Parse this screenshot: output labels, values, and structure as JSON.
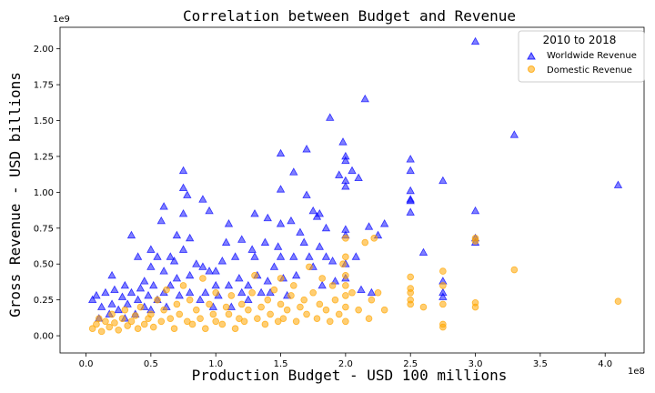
{
  "chart_data": {
    "type": "scatter",
    "title": "Correlation between Budget and Revenue",
    "xlabel": "Production Budget - USD 100 millions",
    "ylabel": "Gross Revenue - USD billions",
    "x_offset_label": "1e8",
    "y_offset_label": "1e9",
    "xlim": [
      -0.2,
      4.3
    ],
    "ylim": [
      -0.12,
      2.15
    ],
    "xticks": [
      0.0,
      0.5,
      1.0,
      1.5,
      2.0,
      2.5,
      3.0,
      3.5,
      4.0
    ],
    "xtick_labels": [
      "0.0",
      "0.5",
      "1.0",
      "1.5",
      "2.0",
      "2.5",
      "3.0",
      "3.5",
      "4.0"
    ],
    "yticks": [
      0.0,
      0.25,
      0.5,
      0.75,
      1.0,
      1.25,
      1.5,
      1.75,
      2.0
    ],
    "ytick_labels": [
      "0.00",
      "0.25",
      "0.50",
      "0.75",
      "1.00",
      "1.25",
      "1.50",
      "1.75",
      "2.00"
    ],
    "legend": {
      "title": "2010 to 2018",
      "position": "top-right"
    },
    "series": [
      {
        "name": "Worldwide Revenue",
        "marker": "triangle",
        "color": "#0000ff",
        "points": [
          [
            0.05,
            0.25
          ],
          [
            0.08,
            0.28
          ],
          [
            0.1,
            0.12
          ],
          [
            0.12,
            0.2
          ],
          [
            0.15,
            0.3
          ],
          [
            0.18,
            0.15
          ],
          [
            0.2,
            0.22
          ],
          [
            0.2,
            0.42
          ],
          [
            0.22,
            0.32
          ],
          [
            0.25,
            0.18
          ],
          [
            0.28,
            0.27
          ],
          [
            0.3,
            0.12
          ],
          [
            0.3,
            0.35
          ],
          [
            0.32,
            0.22
          ],
          [
            0.35,
            0.7
          ],
          [
            0.35,
            0.3
          ],
          [
            0.38,
            0.15
          ],
          [
            0.4,
            0.25
          ],
          [
            0.4,
            0.55
          ],
          [
            0.42,
            0.33
          ],
          [
            0.45,
            0.2
          ],
          [
            0.45,
            0.38
          ],
          [
            0.48,
            0.28
          ],
          [
            0.5,
            0.48
          ],
          [
            0.5,
            0.6
          ],
          [
            0.5,
            0.18
          ],
          [
            0.52,
            0.35
          ],
          [
            0.55,
            0.55
          ],
          [
            0.55,
            0.25
          ],
          [
            0.58,
            0.8
          ],
          [
            0.6,
            0.9
          ],
          [
            0.6,
            0.45
          ],
          [
            0.6,
            0.3
          ],
          [
            0.62,
            0.2
          ],
          [
            0.65,
            0.35
          ],
          [
            0.65,
            0.55
          ],
          [
            0.68,
            0.52
          ],
          [
            0.7,
            0.7
          ],
          [
            0.7,
            0.4
          ],
          [
            0.72,
            0.28
          ],
          [
            0.75,
            1.15
          ],
          [
            0.75,
            1.03
          ],
          [
            0.75,
            0.85
          ],
          [
            0.75,
            0.6
          ],
          [
            0.78,
            0.98
          ],
          [
            0.8,
            0.42
          ],
          [
            0.8,
            0.68
          ],
          [
            0.8,
            0.3
          ],
          [
            0.85,
            0.5
          ],
          [
            0.88,
            0.25
          ],
          [
            0.9,
            0.95
          ],
          [
            0.9,
            0.48
          ],
          [
            0.92,
            0.3
          ],
          [
            0.95,
            0.87
          ],
          [
            0.95,
            0.45
          ],
          [
            0.98,
            0.2
          ],
          [
            1.0,
            0.45
          ],
          [
            1.0,
            0.35
          ],
          [
            1.02,
            0.28
          ],
          [
            1.05,
            0.52
          ],
          [
            1.08,
            0.65
          ],
          [
            1.1,
            0.78
          ],
          [
            1.1,
            0.35
          ],
          [
            1.12,
            0.2
          ],
          [
            1.15,
            0.55
          ],
          [
            1.18,
            0.4
          ],
          [
            1.2,
            0.67
          ],
          [
            1.2,
            0.3
          ],
          [
            1.25,
            0.35
          ],
          [
            1.25,
            0.25
          ],
          [
            1.28,
            0.6
          ],
          [
            1.3,
            0.85
          ],
          [
            1.3,
            0.55
          ],
          [
            1.32,
            0.42
          ],
          [
            1.35,
            0.3
          ],
          [
            1.38,
            0.65
          ],
          [
            1.4,
            0.82
          ],
          [
            1.4,
            0.38
          ],
          [
            1.42,
            0.3
          ],
          [
            1.45,
            0.48
          ],
          [
            1.48,
            0.62
          ],
          [
            1.5,
            1.27
          ],
          [
            1.5,
            1.02
          ],
          [
            1.5,
            0.78
          ],
          [
            1.5,
            0.55
          ],
          [
            1.52,
            0.4
          ],
          [
            1.55,
            0.28
          ],
          [
            1.58,
            0.8
          ],
          [
            1.6,
            1.14
          ],
          [
            1.6,
            0.55
          ],
          [
            1.62,
            0.42
          ],
          [
            1.65,
            0.72
          ],
          [
            1.68,
            0.65
          ],
          [
            1.7,
            1.3
          ],
          [
            1.7,
            0.98
          ],
          [
            1.72,
            0.55
          ],
          [
            1.75,
            0.87
          ],
          [
            1.75,
            0.48
          ],
          [
            1.78,
            0.83
          ],
          [
            1.8,
            0.85
          ],
          [
            1.8,
            0.62
          ],
          [
            1.82,
            0.35
          ],
          [
            1.85,
            0.75
          ],
          [
            1.85,
            0.55
          ],
          [
            1.88,
            1.52
          ],
          [
            1.9,
            0.52
          ],
          [
            1.92,
            0.38
          ],
          [
            1.95,
            1.12
          ],
          [
            1.98,
            1.35
          ],
          [
            2.0,
            1.25
          ],
          [
            2.0,
            1.22
          ],
          [
            2.0,
            1.08
          ],
          [
            2.0,
            1.04
          ],
          [
            2.0,
            0.74
          ],
          [
            2.0,
            0.7
          ],
          [
            2.0,
            0.5
          ],
          [
            2.0,
            0.4
          ],
          [
            2.05,
            1.15
          ],
          [
            2.08,
            0.55
          ],
          [
            2.1,
            1.1
          ],
          [
            2.12,
            0.32
          ],
          [
            2.15,
            1.65
          ],
          [
            2.18,
            0.76
          ],
          [
            2.2,
            0.3
          ],
          [
            2.25,
            0.7
          ],
          [
            2.3,
            0.78
          ],
          [
            2.5,
            1.23
          ],
          [
            2.5,
            1.15
          ],
          [
            2.5,
            1.01
          ],
          [
            2.5,
            0.95
          ],
          [
            2.5,
            0.94
          ],
          [
            2.5,
            0.86
          ],
          [
            2.6,
            0.58
          ],
          [
            2.75,
            1.08
          ],
          [
            2.75,
            0.38
          ],
          [
            2.75,
            0.3
          ],
          [
            2.75,
            0.27
          ],
          [
            3.0,
            2.05
          ],
          [
            3.0,
            0.87
          ],
          [
            3.0,
            0.68
          ],
          [
            3.0,
            0.65
          ],
          [
            3.3,
            1.4
          ],
          [
            4.1,
            1.05
          ]
        ]
      },
      {
        "name": "Domestic Revenue",
        "marker": "circle",
        "color": "#ffa500",
        "points": [
          [
            0.05,
            0.05
          ],
          [
            0.08,
            0.08
          ],
          [
            0.1,
            0.12
          ],
          [
            0.12,
            0.03
          ],
          [
            0.15,
            0.1
          ],
          [
            0.18,
            0.06
          ],
          [
            0.2,
            0.15
          ],
          [
            0.22,
            0.09
          ],
          [
            0.25,
            0.04
          ],
          [
            0.28,
            0.12
          ],
          [
            0.3,
            0.18
          ],
          [
            0.32,
            0.07
          ],
          [
            0.35,
            0.1
          ],
          [
            0.38,
            0.14
          ],
          [
            0.4,
            0.05
          ],
          [
            0.42,
            0.2
          ],
          [
            0.45,
            0.08
          ],
          [
            0.48,
            0.12
          ],
          [
            0.5,
            0.15
          ],
          [
            0.52,
            0.06
          ],
          [
            0.55,
            0.25
          ],
          [
            0.58,
            0.1
          ],
          [
            0.6,
            0.18
          ],
          [
            0.62,
            0.32
          ],
          [
            0.65,
            0.12
          ],
          [
            0.68,
            0.05
          ],
          [
            0.7,
            0.22
          ],
          [
            0.72,
            0.15
          ],
          [
            0.75,
            0.35
          ],
          [
            0.78,
            0.1
          ],
          [
            0.8,
            0.25
          ],
          [
            0.82,
            0.08
          ],
          [
            0.85,
            0.18
          ],
          [
            0.88,
            0.12
          ],
          [
            0.9,
            0.4
          ],
          [
            0.92,
            0.05
          ],
          [
            0.95,
            0.22
          ],
          [
            0.98,
            0.15
          ],
          [
            1.0,
            0.3
          ],
          [
            1.0,
            0.1
          ],
          [
            1.05,
            0.08
          ],
          [
            1.08,
            0.2
          ],
          [
            1.1,
            0.15
          ],
          [
            1.12,
            0.28
          ],
          [
            1.15,
            0.05
          ],
          [
            1.18,
            0.12
          ],
          [
            1.2,
            0.22
          ],
          [
            1.22,
            0.1
          ],
          [
            1.25,
            0.18
          ],
          [
            1.28,
            0.3
          ],
          [
            1.3,
            0.42
          ],
          [
            1.32,
            0.12
          ],
          [
            1.35,
            0.2
          ],
          [
            1.38,
            0.08
          ],
          [
            1.4,
            0.25
          ],
          [
            1.42,
            0.15
          ],
          [
            1.45,
            0.32
          ],
          [
            1.48,
            0.1
          ],
          [
            1.5,
            0.22
          ],
          [
            1.5,
            0.4
          ],
          [
            1.52,
            0.12
          ],
          [
            1.55,
            0.18
          ],
          [
            1.58,
            0.28
          ],
          [
            1.6,
            0.35
          ],
          [
            1.62,
            0.1
          ],
          [
            1.65,
            0.2
          ],
          [
            1.68,
            0.25
          ],
          [
            1.7,
            0.15
          ],
          [
            1.72,
            0.48
          ],
          [
            1.75,
            0.3
          ],
          [
            1.78,
            0.12
          ],
          [
            1.8,
            0.22
          ],
          [
            1.82,
            0.4
          ],
          [
            1.85,
            0.18
          ],
          [
            1.88,
            0.1
          ],
          [
            1.9,
            0.35
          ],
          [
            1.92,
            0.25
          ],
          [
            1.95,
            0.15
          ],
          [
            1.98,
            0.5
          ],
          [
            2.0,
            0.68
          ],
          [
            2.0,
            0.55
          ],
          [
            2.0,
            0.42
          ],
          [
            2.0,
            0.35
          ],
          [
            2.0,
            0.28
          ],
          [
            2.0,
            0.2
          ],
          [
            2.0,
            0.1
          ],
          [
            2.05,
            0.3
          ],
          [
            2.1,
            0.18
          ],
          [
            2.15,
            0.65
          ],
          [
            2.18,
            0.12
          ],
          [
            2.2,
            0.25
          ],
          [
            2.22,
            0.68
          ],
          [
            2.25,
            0.3
          ],
          [
            2.3,
            0.18
          ],
          [
            2.5,
            0.41
          ],
          [
            2.5,
            0.33
          ],
          [
            2.5,
            0.3
          ],
          [
            2.5,
            0.25
          ],
          [
            2.5,
            0.22
          ],
          [
            2.6,
            0.2
          ],
          [
            2.75,
            0.45
          ],
          [
            2.75,
            0.35
          ],
          [
            2.75,
            0.22
          ],
          [
            2.75,
            0.08
          ],
          [
            2.75,
            0.06
          ],
          [
            3.0,
            0.68
          ],
          [
            3.0,
            0.66
          ],
          [
            3.0,
            0.23
          ],
          [
            3.0,
            0.2
          ],
          [
            3.3,
            0.46
          ],
          [
            4.1,
            0.24
          ]
        ]
      }
    ]
  }
}
